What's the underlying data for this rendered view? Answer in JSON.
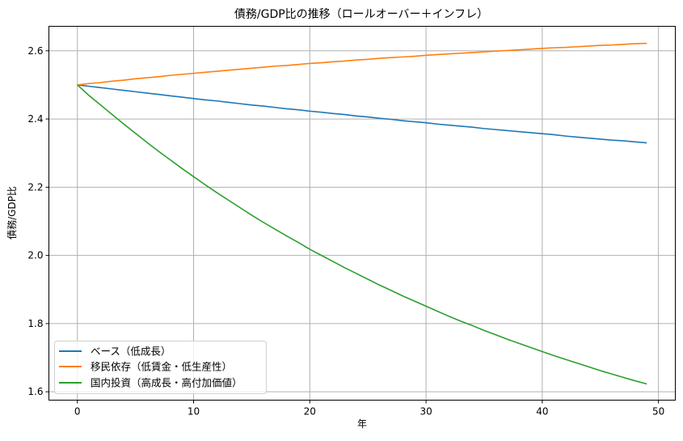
{
  "chart_data": {
    "type": "line",
    "title": "債務/GDP比の推移（ロールオーバー＋インフレ）",
    "xlabel": "年",
    "ylabel": "債務/GDP比",
    "xlim": [
      -2.45,
      51.45
    ],
    "ylim": [
      1.5755,
      2.6719
    ],
    "xticks": [
      0,
      10,
      20,
      30,
      40,
      50
    ],
    "yticks": [
      1.6,
      1.8,
      2.0,
      2.2,
      2.4,
      2.6
    ],
    "ytick_labels": [
      "1.6",
      "1.8",
      "2.0",
      "2.2",
      "2.4",
      "2.6"
    ],
    "grid": true,
    "legend_position": "lower left",
    "x": [
      0,
      1,
      2,
      3,
      4,
      5,
      6,
      7,
      8,
      9,
      10,
      11,
      12,
      13,
      14,
      15,
      16,
      17,
      18,
      19,
      20,
      21,
      22,
      23,
      24,
      25,
      26,
      27,
      28,
      29,
      30,
      31,
      32,
      33,
      34,
      35,
      36,
      37,
      38,
      39,
      40,
      41,
      42,
      43,
      44,
      45,
      46,
      47,
      48,
      49
    ],
    "series": [
      {
        "name": "ベース（低成長）",
        "color": "#1f77b4",
        "values": [
          2.5,
          2.496,
          2.492,
          2.488,
          2.484,
          2.48,
          2.476,
          2.472,
          2.468,
          2.464,
          2.46,
          2.456,
          2.453,
          2.449,
          2.445,
          2.441,
          2.438,
          2.434,
          2.43,
          2.427,
          2.423,
          2.42,
          2.416,
          2.413,
          2.409,
          2.406,
          2.402,
          2.399,
          2.395,
          2.392,
          2.389,
          2.385,
          2.382,
          2.379,
          2.376,
          2.372,
          2.369,
          2.366,
          2.363,
          2.36,
          2.357,
          2.354,
          2.35,
          2.347,
          2.344,
          2.341,
          2.338,
          2.336,
          2.333,
          2.33
        ]
      },
      {
        "name": "移民依存（低賃金・低生産性）",
        "color": "#ff7f0e",
        "values": [
          2.5,
          2.504,
          2.507,
          2.511,
          2.514,
          2.518,
          2.521,
          2.524,
          2.528,
          2.531,
          2.534,
          2.537,
          2.54,
          2.543,
          2.546,
          2.549,
          2.552,
          2.555,
          2.557,
          2.56,
          2.563,
          2.565,
          2.568,
          2.57,
          2.573,
          2.575,
          2.578,
          2.58,
          2.582,
          2.584,
          2.587,
          2.589,
          2.591,
          2.593,
          2.595,
          2.597,
          2.599,
          2.601,
          2.603,
          2.605,
          2.607,
          2.609,
          2.61,
          2.612,
          2.614,
          2.616,
          2.617,
          2.619,
          2.621,
          2.622
        ]
      },
      {
        "name": "国内投資（高成長・高付加価値）",
        "color": "#2ca02c",
        "values": [
          2.5,
          2.469,
          2.441,
          2.413,
          2.385,
          2.358,
          2.331,
          2.305,
          2.28,
          2.255,
          2.231,
          2.207,
          2.184,
          2.162,
          2.14,
          2.118,
          2.097,
          2.077,
          2.057,
          2.038,
          2.018,
          2.0,
          1.982,
          1.964,
          1.947,
          1.93,
          1.913,
          1.897,
          1.881,
          1.866,
          1.851,
          1.836,
          1.821,
          1.807,
          1.794,
          1.78,
          1.767,
          1.754,
          1.742,
          1.73,
          1.718,
          1.706,
          1.695,
          1.684,
          1.673,
          1.662,
          1.652,
          1.642,
          1.632,
          1.623
        ]
      }
    ]
  },
  "legend": {
    "items": [
      {
        "label": "ベース（低成長）",
        "color": "#1f77b4"
      },
      {
        "label": "移民依存（低賃金・低生産性）",
        "color": "#ff7f0e"
      },
      {
        "label": "国内投資（高成長・高付加価値）",
        "color": "#2ca02c"
      }
    ]
  },
  "axes": {
    "x_tick_labels": [
      "0",
      "10",
      "20",
      "30",
      "40",
      "50"
    ],
    "y_tick_labels": [
      "1.6",
      "1.8",
      "2.0",
      "2.2",
      "2.4",
      "2.6"
    ]
  }
}
